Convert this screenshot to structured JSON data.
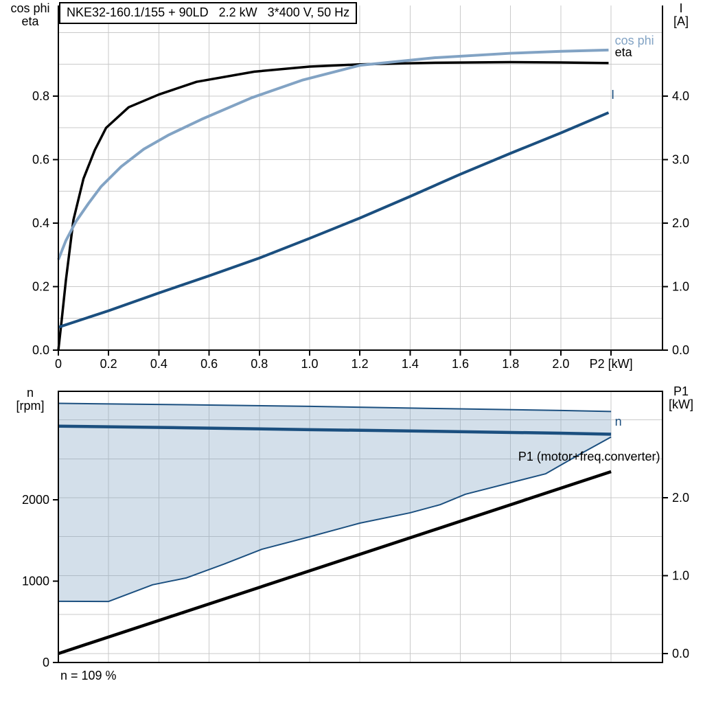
{
  "title": "NKE32-160.1/155 + 90LD   2.2 kW   3*400 V, 50 Hz",
  "note": "n = 109 %",
  "colors": {
    "axis": "#000000",
    "grid": "#c9c9c9",
    "eta": "#000000",
    "cos_phi": "#82a3c4",
    "current": "#1b4f7f",
    "speed": "#1b4f7f",
    "p1": "#000000",
    "envelope_edge": "#1b4f7f",
    "envelope_fill": "rgba(130,163,196,0.35)"
  },
  "chart_data": [
    {
      "id": "power-chart",
      "type": "line",
      "x_axis": {
        "label": "P2 [kW]",
        "range": [
          0,
          2.4046
        ],
        "grid": [
          0.2,
          0.4,
          0.6,
          0.8,
          1.0,
          1.2,
          1.4,
          1.6,
          1.8,
          2.0,
          2.2
        ],
        "ticks": [
          {
            "v": 0,
            "label": "0"
          },
          {
            "v": 0.2,
            "label": "0.2"
          },
          {
            "v": 0.4,
            "label": "0.4"
          },
          {
            "v": 0.6,
            "label": "0.6"
          },
          {
            "v": 0.8,
            "label": "0.8"
          },
          {
            "v": 1.0,
            "label": "1.0"
          },
          {
            "v": 1.2,
            "label": "1.2"
          },
          {
            "v": 1.4,
            "label": "1.4"
          },
          {
            "v": 1.6,
            "label": "1.6"
          },
          {
            "v": 1.8,
            "label": "1.8"
          },
          {
            "v": 2.0,
            "label": "2.0"
          },
          {
            "v": 2.2,
            "label": "P2 [kW]"
          }
        ]
      },
      "left_axis": {
        "title_lines": [
          "cos phi",
          "eta"
        ],
        "range": [
          0,
          1.0854
        ],
        "grid": [
          0.1,
          0.2,
          0.3,
          0.4,
          0.5,
          0.6,
          0.7,
          0.8,
          0.9,
          1.0
        ],
        "ticks": [
          {
            "v": 0,
            "label": "0.0"
          },
          {
            "v": 0.2,
            "label": "0.2"
          },
          {
            "v": 0.4,
            "label": "0.4"
          },
          {
            "v": 0.6,
            "label": "0.6"
          },
          {
            "v": 0.8,
            "label": "0.8"
          }
        ]
      },
      "right_axis": {
        "title_lines": [
          "I",
          "[A]"
        ],
        "range": [
          0,
          5.427
        ],
        "grid": [],
        "ticks": [
          {
            "v": 0,
            "label": "0.0"
          },
          {
            "v": 1,
            "label": "1.0"
          },
          {
            "v": 2,
            "label": "2.0"
          },
          {
            "v": 3,
            "label": "3.0"
          },
          {
            "v": 4,
            "label": "4.0"
          }
        ]
      },
      "series": [
        {
          "name": "eta",
          "axis": "left",
          "color": "eta",
          "width": 3.5,
          "points": [
            [
              0,
              0
            ],
            [
              0.014,
              0.1
            ],
            [
              0.03,
              0.22
            ],
            [
              0.06,
              0.41
            ],
            [
              0.1,
              0.54
            ],
            [
              0.145,
              0.63
            ],
            [
              0.19,
              0.7
            ],
            [
              0.28,
              0.765
            ],
            [
              0.4,
              0.805
            ],
            [
              0.55,
              0.845
            ],
            [
              0.78,
              0.877
            ],
            [
              1.0,
              0.893
            ],
            [
              1.2,
              0.9
            ],
            [
              1.5,
              0.905
            ],
            [
              1.8,
              0.907
            ],
            [
              2.0,
              0.906
            ],
            [
              2.19,
              0.904
            ]
          ]
        },
        {
          "name": "cos phi",
          "axis": "left",
          "color": "cos_phi",
          "width": 4,
          "points": [
            [
              0,
              0.285
            ],
            [
              0.03,
              0.345
            ],
            [
              0.07,
              0.405
            ],
            [
              0.12,
              0.462
            ],
            [
              0.17,
              0.515
            ],
            [
              0.25,
              0.578
            ],
            [
              0.34,
              0.633
            ],
            [
              0.44,
              0.678
            ],
            [
              0.57,
              0.727
            ],
            [
              0.77,
              0.795
            ],
            [
              0.97,
              0.85
            ],
            [
              1.2,
              0.897
            ],
            [
              1.5,
              0.921
            ],
            [
              1.8,
              0.935
            ],
            [
              2.0,
              0.941
            ],
            [
              2.19,
              0.945
            ]
          ]
        },
        {
          "name": "I",
          "axis": "right",
          "color": "current",
          "width": 4,
          "points": [
            [
              0,
              0.36
            ],
            [
              0.2,
              0.62
            ],
            [
              0.4,
              0.9
            ],
            [
              0.6,
              1.17
            ],
            [
              0.8,
              1.45
            ],
            [
              1.0,
              1.76
            ],
            [
              1.2,
              2.08
            ],
            [
              1.4,
              2.42
            ],
            [
              1.6,
              2.77
            ],
            [
              1.8,
              3.1
            ],
            [
              2.0,
              3.42
            ],
            [
              2.19,
              3.74
            ]
          ]
        }
      ],
      "annotations": [
        {
          "text": "cos phi",
          "x": 2.215,
          "y": 0.975,
          "axis": "left",
          "color": "cos_phi",
          "align": "start"
        },
        {
          "text": "eta",
          "x": 2.215,
          "y": 0.938,
          "axis": "left",
          "color": "eta",
          "align": "start"
        },
        {
          "text": "I",
          "x": 2.2,
          "y": 4.02,
          "axis": "right",
          "color": "current",
          "align": "start"
        }
      ]
    },
    {
      "id": "speed-chart",
      "type": "line",
      "top_border": true,
      "x_axis": {
        "label": "",
        "range": [
          0,
          2.4046
        ],
        "grid": [
          0.2,
          0.4,
          0.6,
          0.8,
          1.0,
          1.2,
          1.4,
          1.6,
          1.8,
          2.0,
          2.2
        ],
        "ticks": []
      },
      "left_axis": {
        "title_lines": [
          "n",
          "[rpm]"
        ],
        "range": [
          0,
          3333
        ],
        "grid": [],
        "ticks": [
          {
            "v": 0,
            "label": "0"
          },
          {
            "v": 1000,
            "label": "1000"
          },
          {
            "v": 2000,
            "label": "2000"
          }
        ]
      },
      "right_axis": {
        "title_lines": [
          "P1",
          "[kW]"
        ],
        "range": [
          -0.115,
          3.366
        ],
        "grid": [
          0,
          0.5,
          1.0,
          1.5,
          2.0,
          2.5,
          3.0
        ],
        "ticks": [
          {
            "v": 0,
            "label": "0.0"
          },
          {
            "v": 1,
            "label": "1.0"
          },
          {
            "v": 2,
            "label": "2.0"
          }
        ]
      },
      "region": {
        "upper": "speed envelope upper",
        "lower": "speed envelope lower",
        "fill": "envelope_fill"
      },
      "series": [
        {
          "name": "speed envelope upper",
          "axis": "left",
          "color": "envelope_edge",
          "width": 2,
          "points": [
            [
              0,
              3185
            ],
            [
              0.5,
              3168
            ],
            [
              1.0,
              3148
            ],
            [
              1.5,
              3122
            ],
            [
              2.0,
              3098
            ],
            [
              2.2,
              3085
            ]
          ]
        },
        {
          "name": "speed envelope lower",
          "axis": "left",
          "color": "envelope_edge",
          "width": 2,
          "points": [
            [
              0,
              752
            ],
            [
              0.2,
              750
            ],
            [
              0.375,
              955
            ],
            [
              0.51,
              1040
            ],
            [
              0.66,
              1210
            ],
            [
              0.81,
              1392
            ],
            [
              1.0,
              1545
            ],
            [
              1.2,
              1713
            ],
            [
              1.4,
              1840
            ],
            [
              1.52,
              1940
            ],
            [
              1.62,
              2068
            ],
            [
              1.94,
              2320
            ],
            [
              2.07,
              2550
            ],
            [
              2.2,
              2772
            ]
          ]
        },
        {
          "name": "n",
          "axis": "left",
          "color": "speed",
          "width": 4.5,
          "points": [
            [
              0,
              2905
            ],
            [
              0.5,
              2885
            ],
            [
              1.0,
              2862
            ],
            [
              1.5,
              2842
            ],
            [
              2.0,
              2818
            ],
            [
              2.2,
              2806
            ]
          ]
        },
        {
          "name": "P1",
          "axis": "right",
          "color": "p1",
          "width": 4.5,
          "points": [
            [
              0,
              0
            ],
            [
              2.2,
              2.335
            ]
          ]
        }
      ],
      "annotations": [
        {
          "text": "n",
          "x": 2.215,
          "y": 2960,
          "axis": "left",
          "color": "speed",
          "align": "start"
        },
        {
          "text": "P1 (motor+freq.converter)",
          "x": 2.395,
          "y": 2.53,
          "axis": "right",
          "color": "p1",
          "align": "end"
        }
      ]
    }
  ]
}
